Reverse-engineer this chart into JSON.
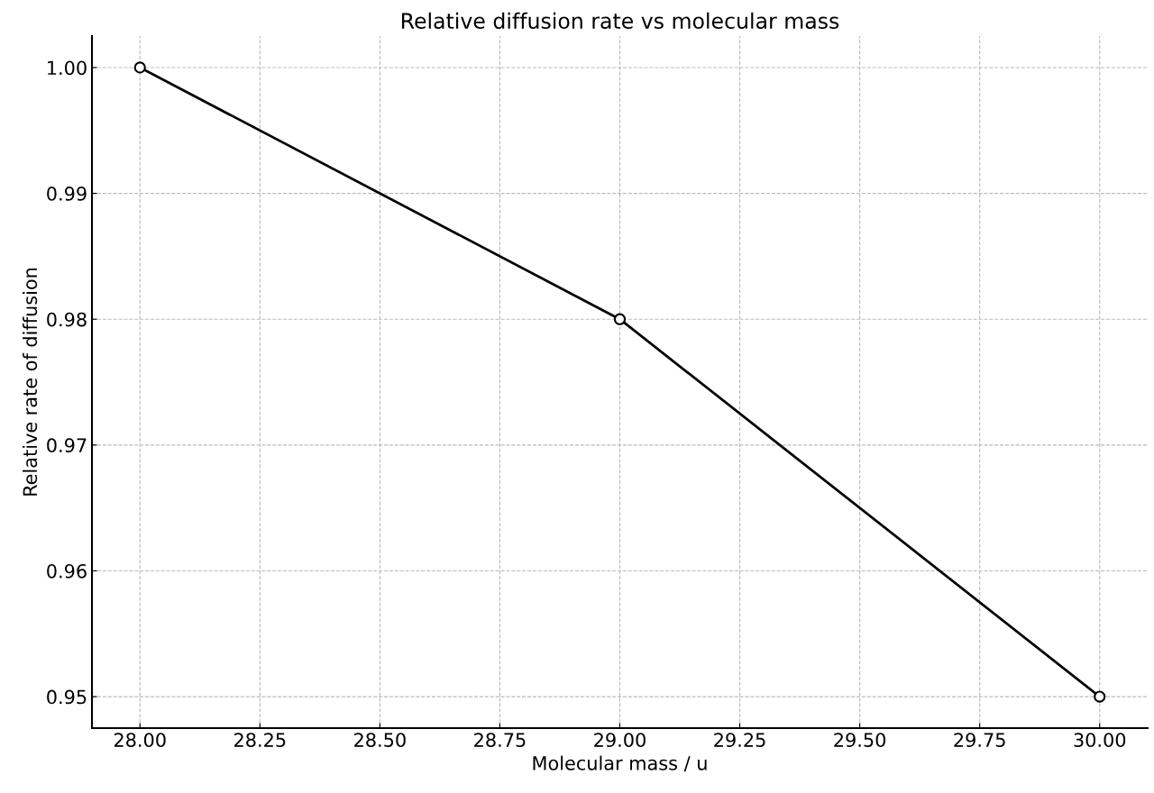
{
  "chart_data": {
    "type": "line",
    "title": "Relative diffusion rate vs molecular mass",
    "xlabel": "Molecular mass / u",
    "ylabel": "Relative rate of diffusion",
    "x": [
      28,
      29,
      30
    ],
    "series": [
      {
        "color": "#000000",
        "values": [
          1.0,
          0.98,
          0.95
        ]
      }
    ],
    "xlim": [
      27.9,
      30.1
    ],
    "xticks": [
      {
        "value": 28,
        "label": "28.00"
      },
      {
        "value": 28.25,
        "label": "28.25"
      },
      {
        "value": 28.5,
        "label": "28.50"
      },
      {
        "value": 28.75,
        "label": "28.75"
      },
      {
        "value": 29,
        "label": "29.00"
      },
      {
        "value": 29.25,
        "label": "29.25"
      },
      {
        "value": 29.5,
        "label": "29.50"
      },
      {
        "value": 29.75,
        "label": "29.75"
      },
      {
        "value": 30,
        "label": "30.00"
      }
    ],
    "ylim": [
      0.9475,
      1.0025
    ],
    "yticks": [
      0.95,
      0.96,
      0.97,
      0.98,
      0.99,
      {
        "value": 1.0,
        "label": "1.00"
      }
    ],
    "grid": true,
    "marker": "circle",
    "line_style": "solid",
    "legend": false
  }
}
